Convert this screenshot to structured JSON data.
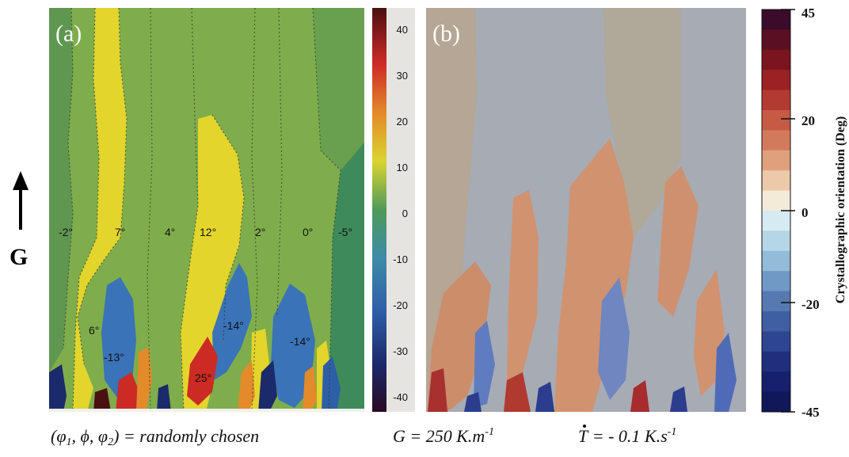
{
  "panel_a": {
    "label": "(a)",
    "grain_labels": [
      "-2°",
      "7°",
      "4°",
      "12°",
      "2°",
      "0°",
      "-5°",
      "6°",
      "-13°",
      "-14°",
      "-14°",
      "25°"
    ],
    "colorbar_ticks": [
      "40",
      "30",
      "20",
      "10",
      "0",
      "-10",
      "-20",
      "-30",
      "-40"
    ]
  },
  "panel_b": {
    "label": "(b)",
    "colorbar_ticks": [
      "45",
      "20",
      "0",
      "-20",
      "-45"
    ],
    "colorbar_title": "Crystallographic orientation (Deg)"
  },
  "gradient_label": "G",
  "caption": {
    "phi1": "φ",
    "phi1_sub": "1",
    "phi": "ϕ",
    "phi2": "φ",
    "phi2_sub": "2",
    "random": "= randomly chosen",
    "g_text": "G = 250 K.m",
    "g_exp": "-1",
    "t_symbol": "T",
    "t_text": "= - 0.1 K.s",
    "t_exp": "-1"
  },
  "colors": {
    "a_background": "#7fad4c",
    "a_yellow": "#e3d52c",
    "a_blue": "#3a73b7",
    "b_gray": "#a7abb4",
    "b_orange": "#d1926f",
    "b_tan": "#b5a695"
  }
}
